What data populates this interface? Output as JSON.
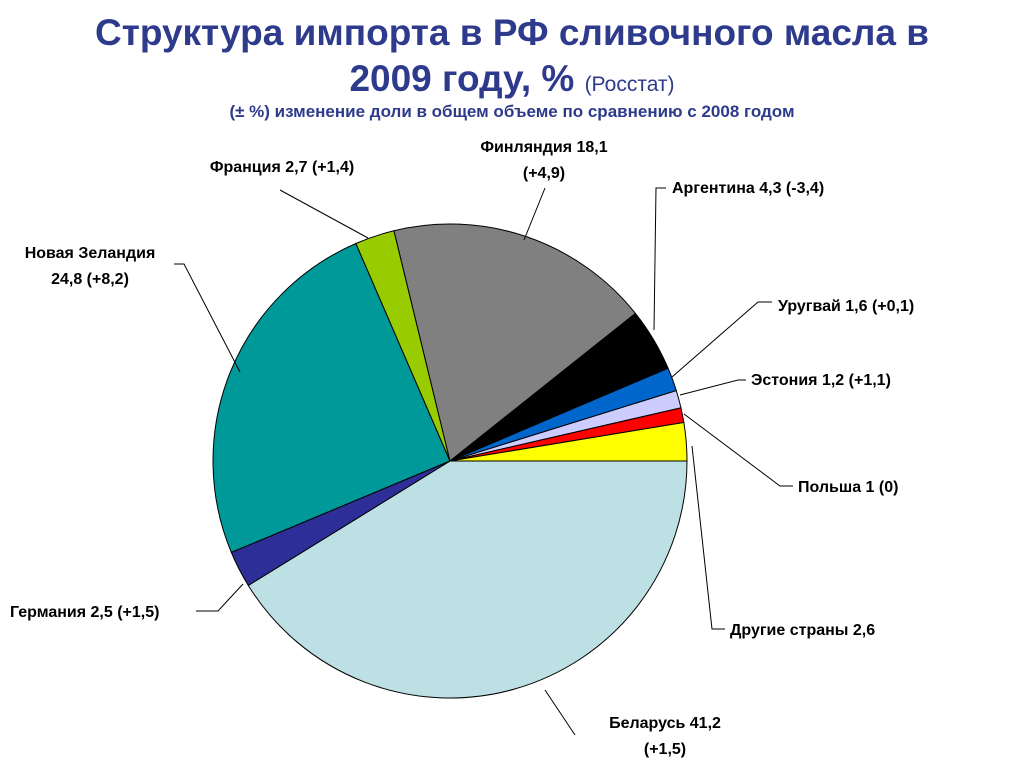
{
  "header": {
    "title_line1": "Структура импорта в РФ сливочного масла в",
    "title_line2": "2009 году, %",
    "source": "(Росстат)",
    "subtitle": "(± %) изменение доли в общем объеме по сравнению с 2008 годом"
  },
  "chart_data": {
    "type": "pie",
    "title": "Структура импорта в РФ сливочного масла в 2009 году, %",
    "subtitle": "(± %) изменение доли в общем объеме по сравнению с 2008 годом",
    "unit": "%",
    "slices": [
      {
        "name": "Беларусь",
        "value": 41.2,
        "change": "+1,5",
        "label_lines": [
          "Беларусь 41,2",
          "(+1,5)"
        ],
        "color": "#BCE0E3"
      },
      {
        "name": "Германия",
        "value": 2.5,
        "change": "+1,5",
        "label_lines": [
          "Германия 2,5 (+1,5)"
        ],
        "color": "#2E2E99"
      },
      {
        "name": "Новая Зеландия",
        "value": 24.8,
        "change": "+8,2",
        "label_lines": [
          "Новая Зеландия",
          "24,8 (+8,2)"
        ],
        "color": "#009999"
      },
      {
        "name": "Франция",
        "value": 2.7,
        "change": "+1,4",
        "label_lines": [
          "Франция 2,7 (+1,4)"
        ],
        "color": "#99CC00"
      },
      {
        "name": "Финляндия",
        "value": 18.1,
        "change": "+4,9",
        "label_lines": [
          "Финляндия 18,1",
          "(+4,9)"
        ],
        "color": "#808080"
      },
      {
        "name": "Аргентина",
        "value": 4.3,
        "change": "-3,4",
        "label_lines": [
          "Аргентина 4,3 (-3,4)"
        ],
        "color": "#000000"
      },
      {
        "name": "Уругвай",
        "value": 1.6,
        "change": "+0,1",
        "label_lines": [
          "Уругвай 1,6 (+0,1)"
        ],
        "color": "#0066CC"
      },
      {
        "name": "Эстония",
        "value": 1.2,
        "change": "+1,1",
        "label_lines": [
          "Эстония 1,2 (+1,1)"
        ],
        "color": "#CCCCFF"
      },
      {
        "name": "Польша",
        "value": 1,
        "change": "0",
        "label_lines": [
          "Польша 1 (0)"
        ],
        "color": "#FF0000"
      },
      {
        "name": "Другие страны",
        "value": 2.6,
        "change": "",
        "label_lines": [
          "Другие страны 2,6"
        ],
        "color": "#FFFF00"
      }
    ]
  }
}
